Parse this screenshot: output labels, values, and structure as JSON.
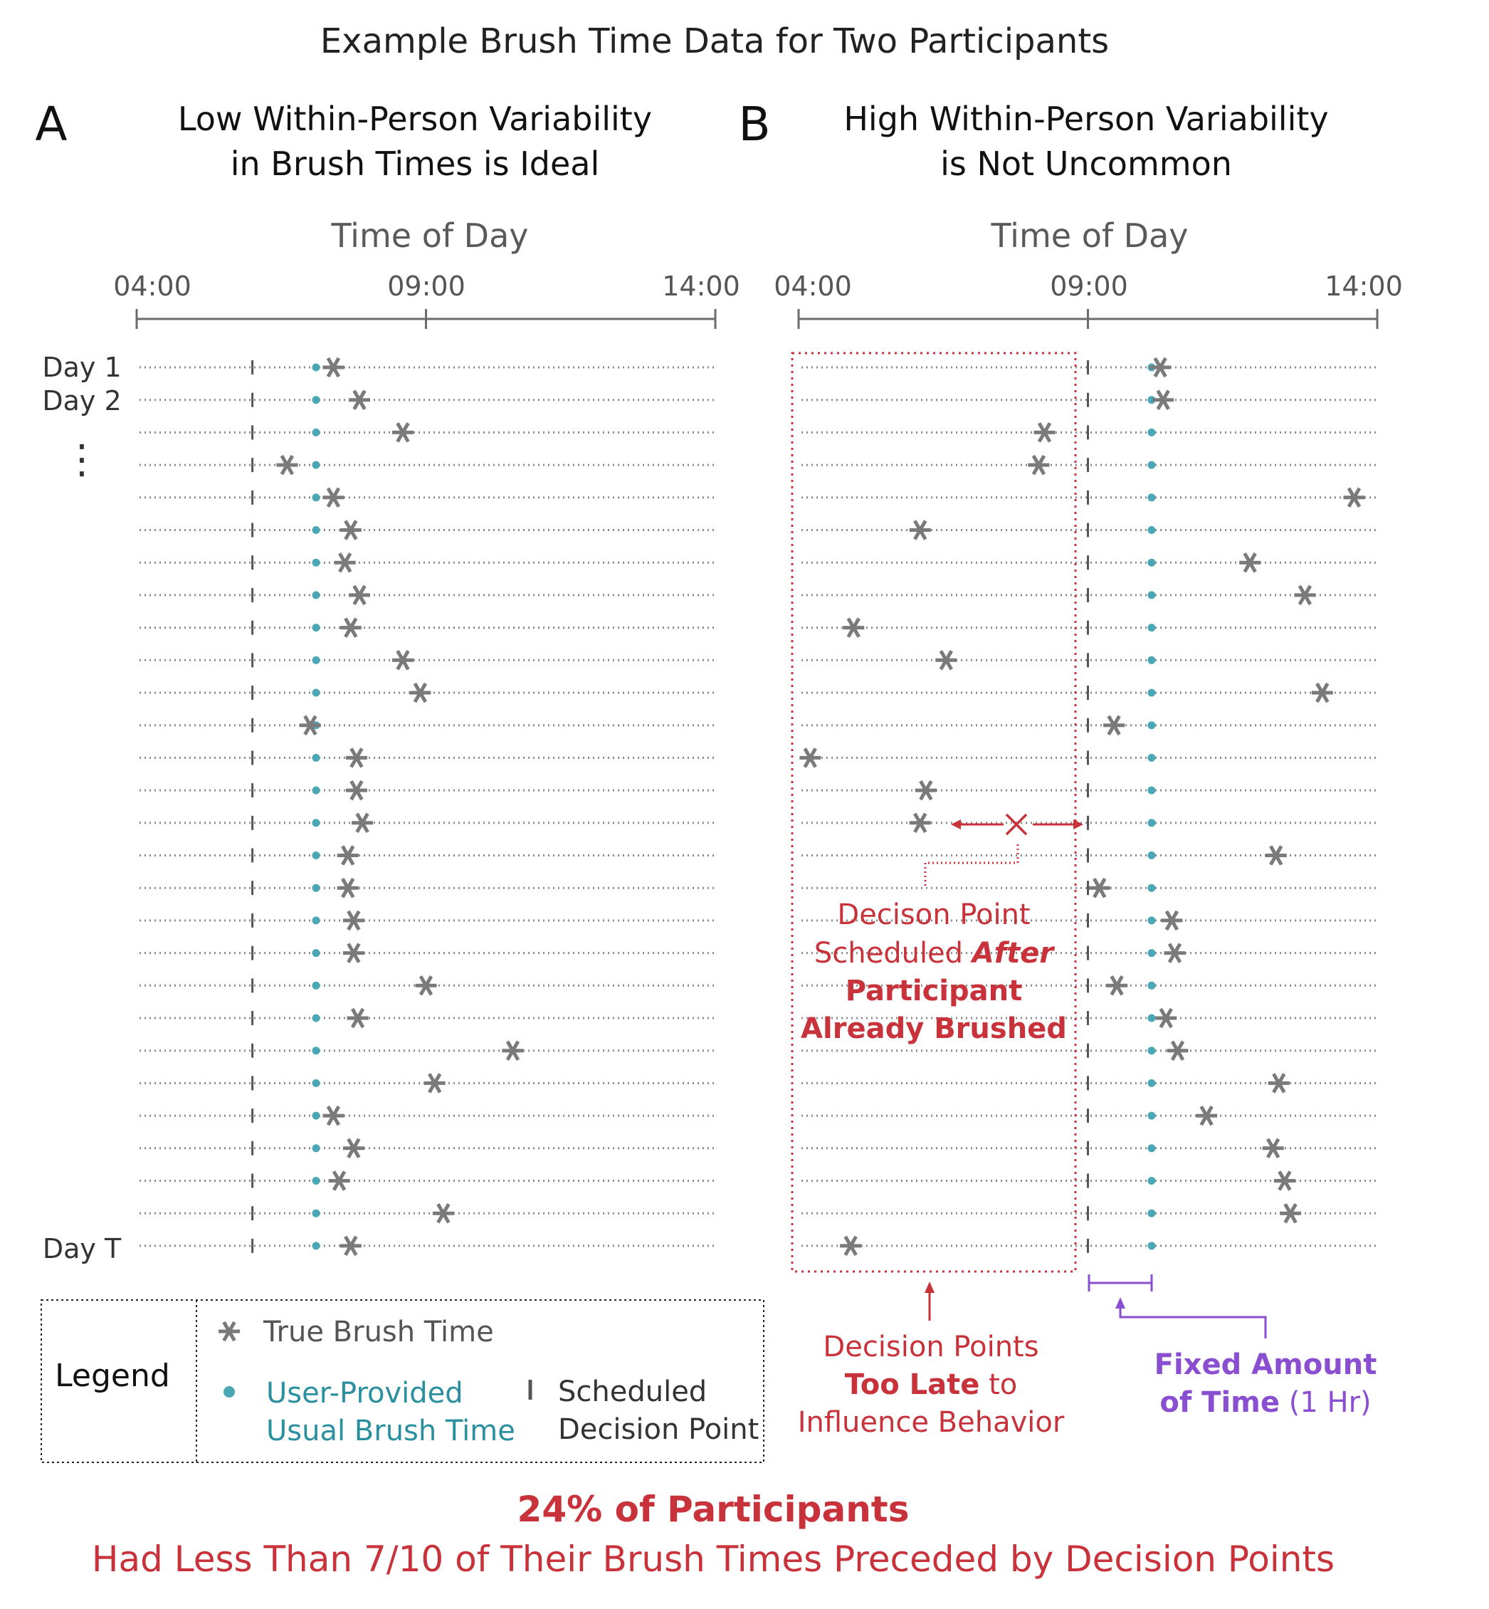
{
  "title": "Example Brush Time Data for Two Participants",
  "colors": {
    "gray": "#6b6b6b",
    "star": "#7a7a7a",
    "teal": "#4aa8b6",
    "teal_text": "#2a8f9e",
    "red": "#c8323a",
    "purple": "#8a4fd0"
  },
  "legend": {
    "title": "Legend",
    "true_brush": "True Brush Time",
    "usual_line1": "User-Provided",
    "usual_line2": "Usual Brush Time",
    "decision_line1": "Scheduled",
    "decision_line2": "Decision Point"
  },
  "annotations": {
    "callout_l1": "Decison Point",
    "callout_l2a": "Scheduled ",
    "callout_l2b": "After",
    "callout_l3": "Participant",
    "callout_l4": "Already Brushed",
    "late_l1": "Decision Points",
    "late_l2a": "Too Late",
    "late_l2b": " to",
    "late_l3": "Influence Behavior",
    "fixed_l1": "Fixed Amount",
    "fixed_l2a": "of Time",
    "fixed_l2b": " (1 Hr)"
  },
  "footer": {
    "line1": "24% of Participants",
    "line2": "Had Less Than 7/10 of Their Brush Times Preceded by Decision Points"
  },
  "chart_data": [
    {
      "type": "scatter",
      "panel_label": "A",
      "title": [
        "Low Within-Person Variability",
        "in Brush Times is Ideal"
      ],
      "xlabel": "Time of Day",
      "xticks": [
        "04:00",
        "09:00",
        "14:00"
      ],
      "xlim": [
        4,
        14
      ],
      "row_labels": [
        "Day 1",
        "Day 2",
        "⋮",
        "Day T"
      ],
      "decision_point": 6.0,
      "usual_time": 7.1,
      "true_brush_times": [
        7.4,
        7.85,
        8.6,
        6.6,
        7.4,
        7.7,
        7.6,
        7.85,
        7.7,
        8.6,
        8.9,
        7.0,
        7.8,
        7.8,
        7.9,
        7.65,
        7.65,
        7.75,
        7.75,
        9.0,
        7.82,
        10.5,
        9.15,
        7.4,
        7.75,
        7.5,
        9.3,
        7.7
      ]
    },
    {
      "type": "scatter",
      "panel_label": "B",
      "title": [
        "High Within-Person Variability",
        "is Not Uncommon"
      ],
      "xlabel": "Time of Day",
      "xticks": [
        "04:00",
        "09:00",
        "14:00"
      ],
      "xlim": [
        4,
        14
      ],
      "decision_point": 9.0,
      "usual_time": 10.1,
      "true_brush_times": [
        10.25,
        10.3,
        8.25,
        8.15,
        13.6,
        6.1,
        11.8,
        12.75,
        4.95,
        6.55,
        13.05,
        9.45,
        4.2,
        6.2,
        6.1,
        12.25,
        9.2,
        10.45,
        10.5,
        9.5,
        10.35,
        10.55,
        12.3,
        11.05,
        12.2,
        12.4,
        12.5,
        4.9
      ]
    }
  ]
}
